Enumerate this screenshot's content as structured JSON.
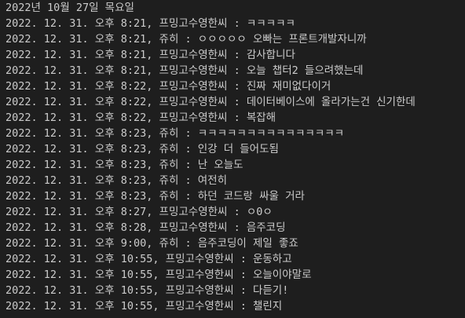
{
  "lines": [
    "2022년 10월 27일 목요일",
    "2022. 12. 31. 오후 8:21, 프밍고수영한씨 : ㅋㅋㅋㅋㅋ",
    "2022. 12. 31. 오후 8:21, 쥬히 : ㅇㅇㅇㅇㅇ 오빠는 프론트개발자니까",
    "2022. 12. 31. 오후 8:21, 프밍고수영한씨 : 감사합니다",
    "2022. 12. 31. 오후 8:21, 프밍고수영한씨 : 오늘 챕터2 들으려했는데",
    "2022. 12. 31. 오후 8:22, 프밍고수영한씨 : 진짜 재미없다이거",
    "2022. 12. 31. 오후 8:22, 프밍고수영한씨 : 데이터베이스에 올라가는건 신기한데",
    "2022. 12. 31. 오후 8:22, 프밍고수영한씨 : 복잡해",
    "2022. 12. 31. 오후 8:23, 쥬히 : ㅋㅋㅋㅋㅋㅋㅋㅋㅋㅋㅋㅋㅋㅋㅋ",
    "2022. 12. 31. 오후 8:23, 쥬히 : 인강 더 들어도됨",
    "2022. 12. 31. 오후 8:23, 쥬히 : 난 오늘도",
    "2022. 12. 31. 오후 8:23, 쥬히 : 여전히",
    "2022. 12. 31. 오후 8:23, 쥬히 : 하던 코드랑 싸울 거라",
    "2022. 12. 31. 오후 8:27, 프밍고수영한씨 : ㅇ0ㅇ",
    "2022. 12. 31. 오후 8:28, 프밍고수영한씨 : 음주코딩",
    "2022. 12. 31. 오후 9:00, 쥬히 : 음주코딩이 제일 좋죠",
    "2022. 12. 31. 오후 10:55, 프밍고수영한씨 : 운동하고",
    "2022. 12. 31. 오후 10:55, 프밍고수영한씨 : 오늘이야말로",
    "2022. 12. 31. 오후 10:55, 프밍고수영한씨 : 다듣기!",
    "2022. 12. 31. 오후 10:55, 프밍고수영한씨 : 챌린지"
  ]
}
